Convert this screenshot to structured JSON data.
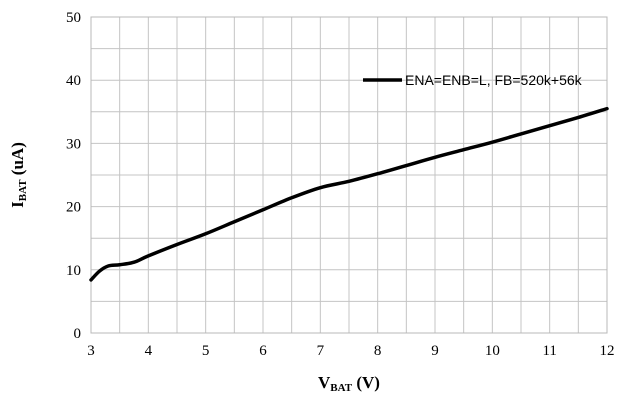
{
  "chart_data": {
    "type": "line",
    "xlabel": "V_BAT (V)",
    "xlabel_main": "V",
    "xlabel_sub": "BAT",
    "xlabel_unit": " (V)",
    "ylabel": "I_BAT (uA)",
    "ylabel_main": "I",
    "ylabel_sub": "BAT",
    "ylabel_unit": " (uA)",
    "xlim": [
      3,
      12
    ],
    "ylim": [
      0,
      50
    ],
    "x_ticks": [
      "3",
      "4",
      "5",
      "6",
      "7",
      "8",
      "9",
      "10",
      "11",
      "12"
    ],
    "y_ticks": [
      "0",
      "10",
      "20",
      "30",
      "40",
      "50"
    ],
    "x_minor_step": 0.5,
    "y_minor_step": 5,
    "grid": true,
    "legend_position": "top-right",
    "series": [
      {
        "name": "ENA=ENB=L, FB=520k+56k",
        "color": "#000000",
        "x": [
          3.0,
          3.15,
          3.3,
          3.5,
          3.75,
          4.0,
          4.5,
          5.0,
          5.5,
          6.0,
          6.5,
          7.0,
          7.5,
          8.0,
          8.5,
          9.0,
          9.5,
          10.0,
          10.5,
          11.0,
          11.5,
          12.0
        ],
        "y": [
          8.4,
          9.8,
          10.6,
          10.8,
          11.2,
          12.2,
          14.0,
          15.7,
          17.6,
          19.5,
          21.4,
          23.0,
          24.0,
          25.2,
          26.5,
          27.8,
          29.0,
          30.2,
          31.5,
          32.8,
          34.1,
          35.5
        ]
      }
    ]
  }
}
